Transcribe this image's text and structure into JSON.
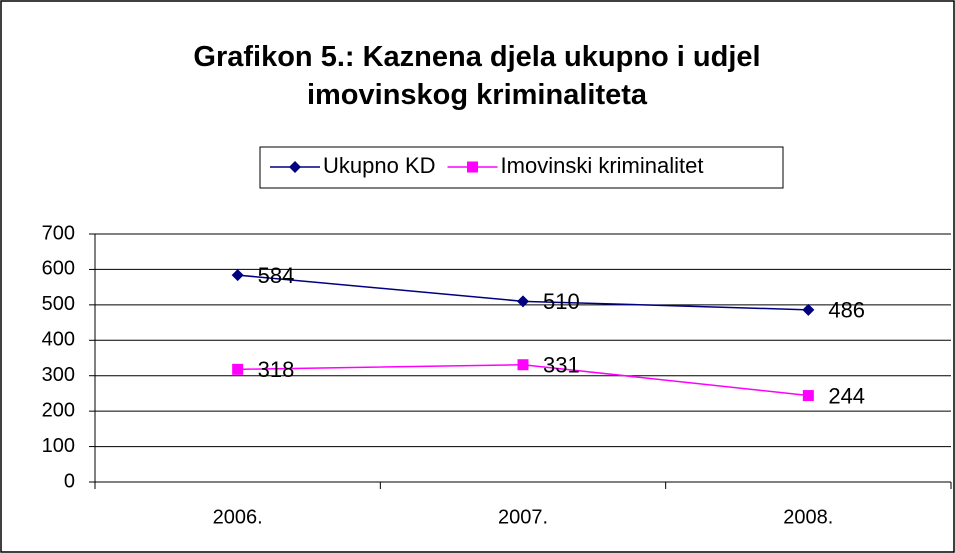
{
  "chart_data": {
    "type": "line",
    "title": "Grafikon 5.: Kaznena djela ukupno i udjel imovinskog kriminaliteta",
    "categories": [
      "2006.",
      "2007.",
      "2008."
    ],
    "series": [
      {
        "name": "Ukupno KD",
        "color": "#000080",
        "marker": "diamond",
        "values": [
          584,
          510,
          486
        ]
      },
      {
        "name": "Imovinski kriminalitet",
        "color": "#FF00FF",
        "marker": "square",
        "values": [
          318,
          331,
          244
        ]
      }
    ],
    "ylim": [
      0,
      700
    ],
    "yticks": [
      0,
      100,
      200,
      300,
      400,
      500,
      600,
      700
    ],
    "grid": true,
    "legend": "top"
  }
}
